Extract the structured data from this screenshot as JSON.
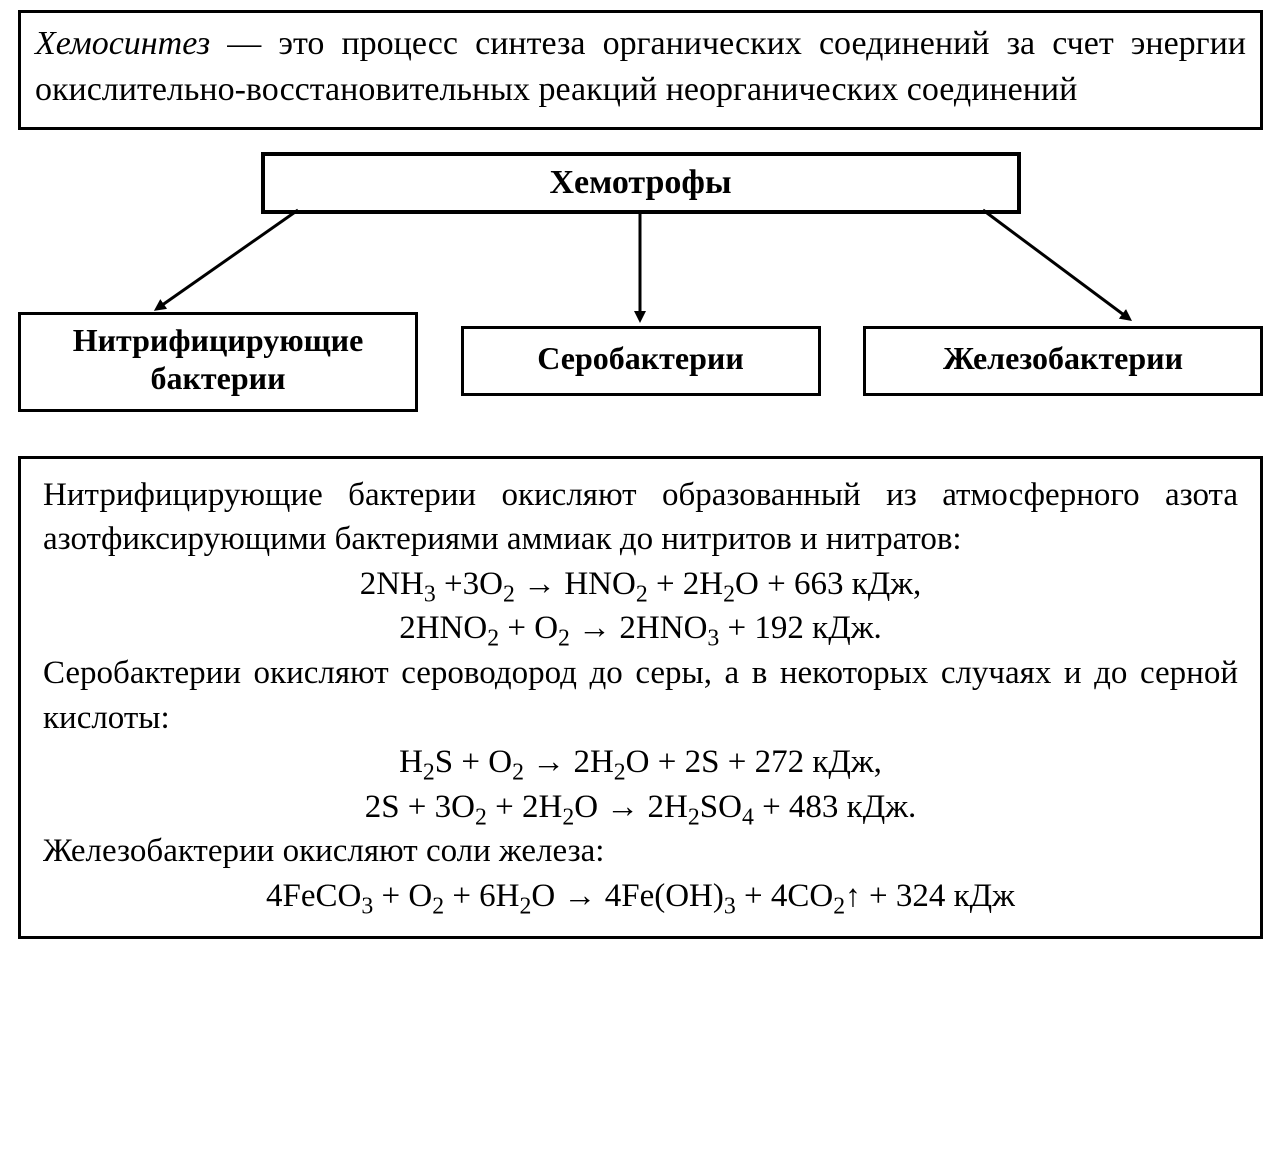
{
  "definition": {
    "term": "Хемосинтез",
    "rest": " — это процесс синтеза органических соедине­ний за счет энергии окислительно-восстановительных реак­ций неорганических соединений"
  },
  "tree": {
    "root": "Хемотрофы",
    "leaves": [
      "Нитрифицирую­щие бактерии",
      "Серобактерии",
      "Железобактерии"
    ]
  },
  "reactions": {
    "p1": "Нитрифицирующие бактерии окисляют образованный из ат­мосферного азота азотфиксирующими бактериями аммиак до нитритов и нитратов:",
    "eq1": "2NH<sub>3</sub> +3O<sub>2</sub> → HNO<sub>2</sub> + 2H<sub>2</sub>O + 663 кДж,",
    "eq2": "2HNO<sub>2</sub> + O<sub>2</sub> → 2HNO<sub>3</sub> + 192 кДж.",
    "p2": "Серобактерии окисляют сероводород до серы, а в некоторых случаях и до серной кислоты:",
    "eq3": "H<sub>2</sub>S + O<sub>2</sub> → 2H<sub>2</sub>O + 2S + 272 кДж,",
    "eq4": "2S + 3O<sub>2</sub> + 2H<sub>2</sub>O → 2H<sub>2</sub>SO<sub>4</sub> + 483 кДж.",
    "p3": "Железобактерии окисляют соли железа:",
    "eq5": "4FeCO<sub>3</sub> + O<sub>2</sub> + 6H<sub>2</sub>O → 4Fe(OH)<sub>3</sub> + 4CO<sub>2</sub><span class=\"arrowup\">↑</span> + 324 кДж"
  },
  "style": {
    "stroke": "#000000",
    "stroke_width": 3,
    "font_family": "Georgia, 'Times New Roman', serif",
    "background": "#ffffff"
  }
}
